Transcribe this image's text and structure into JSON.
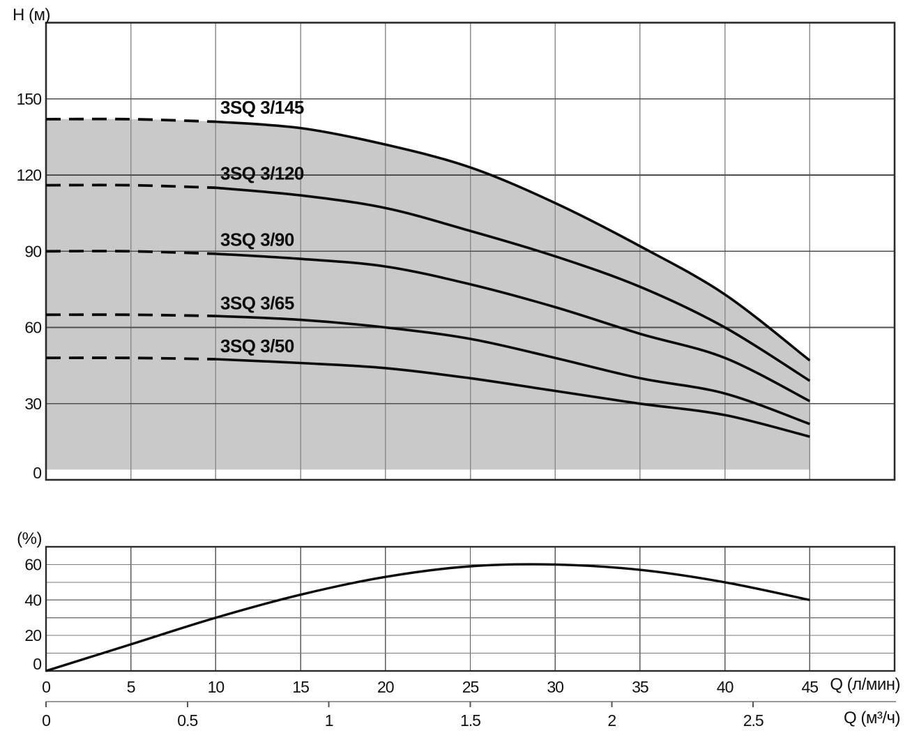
{
  "figure": {
    "description": "Submersible pump 3SQ series performance curves: head vs flow (top) and efficiency vs flow (bottom)"
  },
  "colors": {
    "curve": "#0b0b0b",
    "shaded_region": "#c9c9c9",
    "border": "#2b2b2b",
    "grid_major": "#4f4f4f",
    "grid_minor": "#8c8c8c",
    "secondary_axis_line": "#9a9a9a",
    "text": "#111111"
  },
  "chart_data": [
    {
      "type": "line",
      "title": "Head vs flow curves",
      "ylabel": "H (м)",
      "ylim": [
        0,
        180
      ],
      "ytick_labels": [
        0,
        30,
        60,
        90,
        120,
        150
      ],
      "xlim": [
        0,
        50
      ],
      "grid": true,
      "x": [
        0,
        5,
        10,
        15,
        20,
        25,
        30,
        35,
        40,
        45
      ],
      "dashed_until_q": 10,
      "series": [
        {
          "name": "3SQ 3/145",
          "values": [
            142,
            142,
            141,
            138.5,
            132,
            123,
            109,
            92,
            73,
            47
          ]
        },
        {
          "name": "3SQ 3/120",
          "values": [
            116,
            116,
            115,
            112,
            107,
            98,
            88,
            76,
            60,
            39
          ]
        },
        {
          "name": "3SQ 3/90",
          "values": [
            90,
            90,
            89,
            87,
            84,
            77,
            68,
            57.5,
            48,
            31
          ]
        },
        {
          "name": "3SQ 3/65",
          "values": [
            65,
            65,
            64.5,
            63,
            60,
            55.5,
            48,
            40,
            34,
            22
          ]
        },
        {
          "name": "3SQ 3/50",
          "values": [
            48,
            48,
            47.5,
            46,
            44,
            40,
            35,
            30,
            25.5,
            17
          ]
        }
      ],
      "shaded_band": {
        "color": "#c9c9c9",
        "follows_top_series": "3SQ 3/145",
        "bottom_h": 4,
        "x_end": 45
      }
    },
    {
      "type": "line",
      "title": "Efficiency curve",
      "ylabel": "(%)",
      "ylim": [
        0,
        70
      ],
      "ytick_labels": [
        0,
        20,
        40,
        60
      ],
      "xlim": [
        0,
        50
      ],
      "grid": true,
      "x": [
        0,
        5,
        10,
        15,
        20,
        25,
        30,
        35,
        40,
        45
      ],
      "xtick_labels": [
        0,
        5,
        10,
        15,
        20,
        25,
        30,
        35,
        40,
        45
      ],
      "xlabel": "Q (л/мин)",
      "series": [
        {
          "name": "efficiency",
          "values": [
            0,
            15,
            30,
            43,
            53,
            59,
            60,
            57,
            50,
            40
          ]
        }
      ],
      "x2label": "Q (м³/ч)",
      "x2tick_labels": [
        0,
        0.5,
        1,
        1.5,
        2,
        2.5
      ]
    }
  ]
}
